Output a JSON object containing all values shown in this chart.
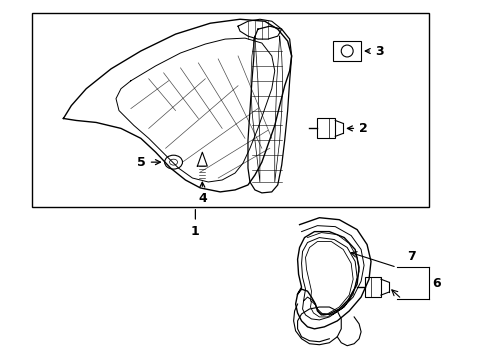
{
  "background_color": "#ffffff",
  "line_color": "#000000",
  "fig_w": 4.89,
  "fig_h": 3.6,
  "dpi": 100
}
